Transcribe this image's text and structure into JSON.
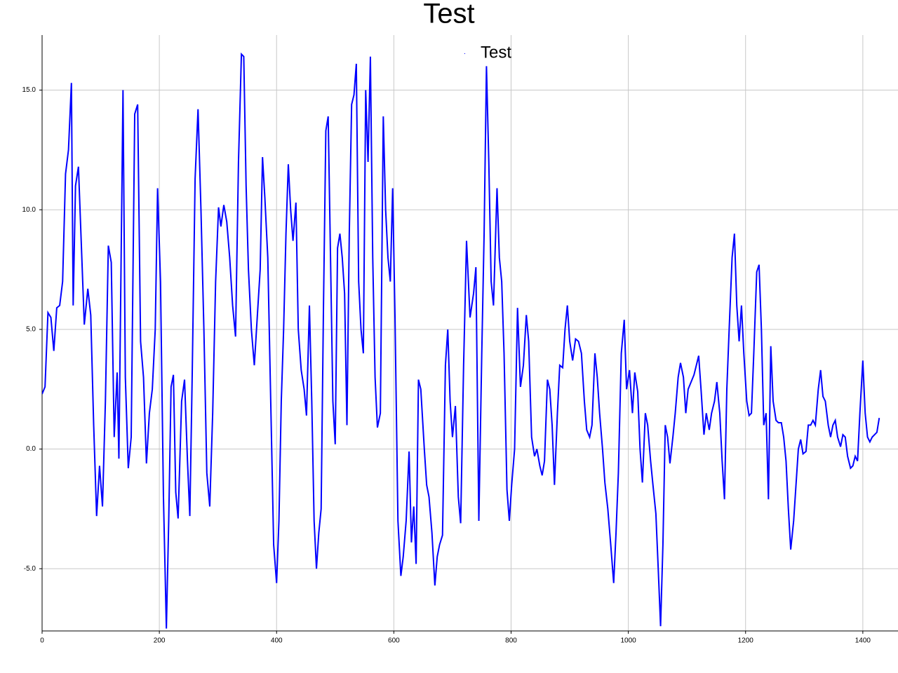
{
  "chart_data": {
    "type": "line",
    "title": "Test",
    "x": [
      0,
      5,
      10,
      15,
      20,
      25,
      30,
      35,
      40,
      45,
      50,
      53,
      57,
      62,
      67,
      72,
      78,
      83,
      88,
      93,
      98,
      103,
      108,
      113,
      118,
      123,
      128,
      131,
      138,
      142,
      147,
      152,
      158,
      163,
      168,
      173,
      178,
      183,
      188,
      193,
      197,
      202,
      207,
      212,
      216,
      220,
      224,
      228,
      232,
      238,
      243,
      248,
      252,
      256,
      261,
      266,
      271,
      276,
      281,
      286,
      291,
      296,
      301,
      305,
      310,
      315,
      320,
      325,
      330,
      335,
      340,
      344,
      348,
      352,
      357,
      362,
      367,
      372,
      376,
      380,
      385,
      390,
      395,
      400,
      404,
      408,
      412,
      416,
      420,
      424,
      428,
      433,
      437,
      442,
      447,
      451,
      456,
      460,
      464,
      468,
      472,
      476,
      480,
      484,
      488,
      492,
      496,
      500,
      504,
      508,
      512,
      516,
      520,
      524,
      528,
      532,
      536,
      540,
      544,
      548,
      552,
      556,
      560,
      564,
      568,
      572,
      577,
      582,
      586,
      590,
      594,
      598,
      602,
      607,
      612,
      616,
      621,
      626,
      630,
      634,
      638,
      642,
      646,
      652,
      656,
      660,
      665,
      670,
      674,
      678,
      683,
      688,
      692,
      696,
      700,
      705,
      710,
      714,
      719,
      724,
      730,
      736,
      740,
      745,
      750,
      754,
      758,
      762,
      766,
      770,
      776,
      780,
      784,
      788,
      793,
      797,
      801,
      806,
      811,
      816,
      821,
      826,
      830,
      835,
      840,
      844,
      849,
      853,
      857,
      862,
      866,
      870,
      874,
      879,
      883,
      888,
      892,
      896,
      900,
      905,
      910,
      915,
      920,
      925,
      929,
      934,
      938,
      943,
      947,
      951,
      956,
      960,
      965,
      970,
      975,
      979,
      983,
      988,
      993,
      997,
      1002,
      1007,
      1011,
      1016,
      1020,
      1024,
      1029,
      1033,
      1038,
      1042,
      1047,
      1051,
      1055,
      1059,
      1063,
      1067,
      1071,
      1076,
      1080,
      1085,
      1089,
      1094,
      1098,
      1102,
      1107,
      1112,
      1116,
      1120,
      1124,
      1129,
      1133,
      1138,
      1142,
      1147,
      1151,
      1156,
      1160,
      1164,
      1168,
      1172,
      1177,
      1181,
      1185,
      1189,
      1193,
      1197,
      1202,
      1206,
      1210,
      1214,
      1219,
      1223,
      1227,
      1231,
      1235,
      1239,
      1243,
      1247,
      1252,
      1256,
      1261,
      1265,
      1269,
      1273,
      1277,
      1282,
      1286,
      1290,
      1294,
      1298,
      1303,
      1307,
      1311,
      1315,
      1319,
      1324,
      1328,
      1332,
      1336,
      1341,
      1345,
      1349,
      1353,
      1357,
      1362,
      1366,
      1370,
      1374,
      1379,
      1383,
      1387,
      1391,
      1395,
      1400,
      1404,
      1408,
      1412,
      1416,
      1420,
      1424,
      1428
    ],
    "series": [
      {
        "name": "Test",
        "color": "#0000ff",
        "values": [
          2.3,
          2.6,
          5.7,
          5.5,
          4.1,
          5.9,
          6,
          7,
          11.5,
          12.5,
          15.3,
          6,
          11,
          11.8,
          8.5,
          5.2,
          6.7,
          5.6,
          1,
          -2.8,
          -0.7,
          -2.4,
          2,
          8.5,
          7.8,
          0.5,
          3.2,
          -0.4,
          15,
          3,
          -0.8,
          0.5,
          14,
          14.4,
          4.5,
          3,
          -0.6,
          1.5,
          2.5,
          5,
          10.9,
          7,
          -2,
          -7.5,
          -3,
          2.6,
          3.1,
          -1.8,
          -2.9,
          2,
          2.9,
          -0.5,
          -2.8,
          3,
          11.3,
          14.2,
          10,
          5,
          -1,
          -2.4,
          1.5,
          7,
          10.1,
          9.3,
          10.2,
          9.5,
          8,
          6,
          4.7,
          12,
          16.5,
          16.4,
          11,
          7.5,
          5,
          3.5,
          5.5,
          7.5,
          12.2,
          10.5,
          8,
          2,
          -4,
          -5.6,
          -3,
          2,
          5,
          9,
          11.9,
          10,
          8.7,
          10.3,
          5,
          3.3,
          2.5,
          1.4,
          6,
          2,
          -3,
          -5,
          -3.5,
          -2.5,
          6,
          13.3,
          13.9,
          8,
          2,
          0.2,
          8.4,
          9,
          8,
          6.5,
          1,
          9,
          14.4,
          14.8,
          16.1,
          7,
          5,
          4,
          15,
          12,
          16.4,
          8,
          3,
          0.9,
          1.5,
          13.9,
          10,
          8,
          7,
          10.9,
          5.5,
          -3,
          -5.3,
          -4.5,
          -3,
          -0.1,
          -3.9,
          -2.4,
          -4.8,
          2.9,
          2.5,
          0,
          -1.5,
          -2,
          -3.5,
          -5.7,
          -4.5,
          -4,
          -3.6,
          3.5,
          5,
          2,
          0.5,
          1.8,
          -2,
          -3.1,
          3.5,
          8.7,
          5.5,
          6.5,
          7.6,
          -3,
          4,
          9,
          16,
          12,
          7,
          6,
          10.9,
          8,
          7,
          4,
          -1.7,
          -3,
          -1.5,
          0,
          5.9,
          2.6,
          3.5,
          5.6,
          4.5,
          0.5,
          -0.3,
          0,
          -0.7,
          -1.1,
          -0.5,
          2.9,
          2.5,
          1,
          -1.5,
          1.5,
          3.5,
          3.4,
          5,
          6,
          4.5,
          3.7,
          4.6,
          4.5,
          4,
          2,
          0.8,
          0.5,
          1,
          4,
          3,
          1.5,
          0,
          -1.4,
          -2.5,
          -4,
          -5.6,
          -3.5,
          -1,
          4,
          5.4,
          2.5,
          3.3,
          1.5,
          3.2,
          2.4,
          0,
          -1.4,
          1.5,
          1,
          -0.5,
          -1.5,
          -2.7,
          -5,
          -7.4,
          -4,
          1,
          0.5,
          -0.6,
          0.5,
          1.5,
          3,
          3.6,
          3,
          1.5,
          2.5,
          2.8,
          3.1,
          3.5,
          3.9,
          2.5,
          0.6,
          1.5,
          0.8,
          1.5,
          2,
          2.8,
          1.5,
          -0.5,
          -2.1,
          2.5,
          5,
          8,
          9,
          6,
          4.5,
          6,
          4,
          2,
          1.4,
          1.5,
          4,
          7.4,
          7.7,
          5,
          1,
          1.5,
          -2.1,
          4.3,
          2,
          1.2,
          1.1,
          1.1,
          0.5,
          -0.5,
          -2.5,
          -4.2,
          -3,
          -1.5,
          0,
          0.4,
          -0.2,
          -0.1,
          1,
          1,
          1.2,
          1,
          2.5,
          3.3,
          2.2,
          2,
          1,
          0.5,
          1,
          1.2,
          0.5,
          0.1,
          0.6,
          0.5,
          -0.3,
          -0.8,
          -0.7,
          -0.3,
          -0.5,
          1.5,
          3.7,
          1.5,
          0.5,
          0.3,
          0.5,
          0.6,
          0.7,
          1.3
        ]
      }
    ],
    "xlim": [
      0,
      1460
    ],
    "xticks": [
      0,
      200,
      400,
      600,
      800,
      1000,
      1200,
      1400
    ],
    "ylim": [
      -7.6,
      17.3
    ],
    "yticks": [
      {
        "value": -5,
        "label": "-5.0"
      },
      {
        "value": 0,
        "label": "0.0"
      },
      {
        "value": 5,
        "label": "5.0"
      },
      {
        "value": 10,
        "label": "10.0"
      },
      {
        "value": 15,
        "label": "15.0"
      }
    ],
    "grid": true,
    "legend": "upper center"
  }
}
